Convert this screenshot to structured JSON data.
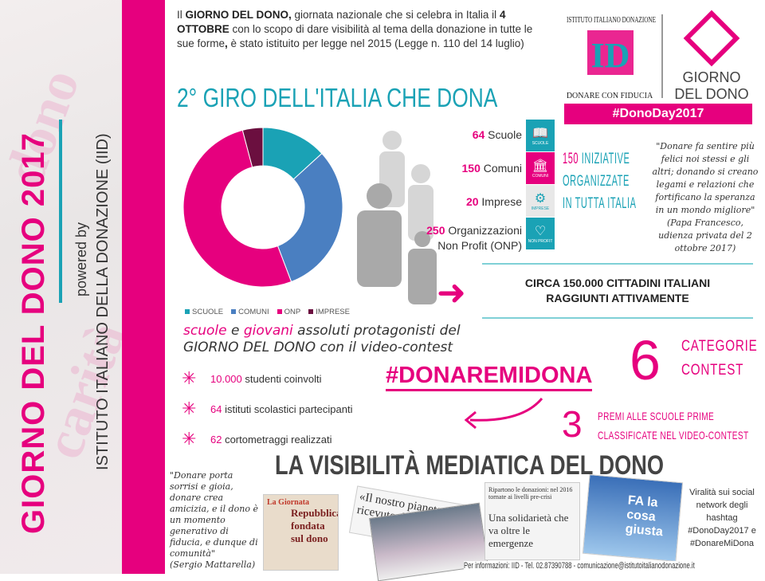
{
  "side": {
    "title": "GIORNO DEL DONO 2017",
    "powered": "powered by",
    "institute": "ISTITUTO ITALIANO DELLA DONAZIONE (IID)"
  },
  "intro": {
    "p1": "Il ",
    "b1": "GIORNO DEL DONO,",
    "p2": " giornata nazionale che si celebra in Italia il ",
    "b2": "4 OTTOBRE",
    "p3": " con lo scopo di dare visibilità al tema della donazione in tutte le sue forme",
    "b3": ",",
    "p4": " è stato istituito per legge nel 2015 (Legge n. 110 del 14 luglio)"
  },
  "heading": "2° GIRO DELL'ITALIA CHE DONA",
  "logo": {
    "arc": "ISTITUTO ITALIANO DONAZIONE",
    "mark": "ID",
    "motto": "DONARE CON FIDUCIA",
    "giorno1": "GIORNO",
    "giorno2": "DEL DONO",
    "hashtag": "#DonoDay2017"
  },
  "chart_data": {
    "type": "pie",
    "donut": true,
    "categories": [
      "SCUOLE",
      "COMUNI",
      "ONP",
      "IMPRESE"
    ],
    "values": [
      64,
      150,
      250,
      20
    ],
    "colors": [
      "#1aa2b5",
      "#4a7fc1",
      "#e6007e",
      "#6b0f3f"
    ],
    "legend": "bottom"
  },
  "stats": [
    {
      "num": "64",
      "label": " Scuole",
      "tile": "SCUOLE",
      "icon": "book-icon",
      "color": "#1aa2b5"
    },
    {
      "num": "150",
      "label": " Comuni",
      "tile": "COMUNI",
      "icon": "building-icon",
      "color": "#e6007e"
    },
    {
      "num": "20",
      "label": " Imprese",
      "tile": "IMPRESE",
      "icon": "gears-icon",
      "color": "#e8e8e8"
    },
    {
      "num": "250",
      "label": " Organizzazioni",
      "label2": "Non Profit (ONP)",
      "tile": "NON PROFIT",
      "icon": "heart-icon",
      "color": "#1aa2b5"
    }
  ],
  "tile_prefix": "DONODAY",
  "initiatives": {
    "num": "150",
    "l1": " INIZIATIVE",
    "l2": "ORGANIZZATE",
    "l3": "IN TUTTA ITALIA"
  },
  "papa_quote": "\"Donare fa sentire più felici noi stessi e gli altri; donando si creano legami e relazioni che fortificano la speranza in un mondo migliore\"",
  "papa_attr": "(Papa Francesco, udienza privata del 2 ottobre 2017)",
  "reach": {
    "l1": "CIRCA 150.000 CITTADINI ITALIANI",
    "l2": "RAGGIUNTI ATTIVAMENTE"
  },
  "youth": {
    "w1": "scuole",
    "t1": " e ",
    "w2": "giovani",
    "t2": " assoluti protagonisti del",
    "l2": "GIORNO DEL DONO con il video-contest"
  },
  "bullets": [
    {
      "num": "10.000",
      "text": " studenti coinvolti"
    },
    {
      "num": "64",
      "text": " istituti scolastici partecipanti"
    },
    {
      "num": "62",
      "text": " cortometraggi realizzati"
    }
  ],
  "hashtag": "#DONAREMIDONA",
  "contest": {
    "num": "6",
    "l1": "CATEGORIE",
    "l2": "CONTEST"
  },
  "prizes": {
    "num": "3",
    "l1": "PREMI ALLE SCUOLE PRIME",
    "l2": "CLASSIFICATE NEL VIDEO-CONTEST"
  },
  "media_title": "LA VISIBILITÀ MEDIATICA DEL DONO",
  "mattarella_quote": "\"Donare porta sorrisi e gioia, donare crea amicizia, e il dono è un momento generativo di fiducia, e dunque di comunità\"",
  "mattarella_attr": "(Sergio Mattarella)",
  "clips": {
    "c1_tag": "La Giornata",
    "c1_head": "Repubblica fondata sul dono",
    "c2": "«Il nostro pianeta dono ricevuto da co...",
    "c3_top": "Ripartono le donazioni: nel 2016 tornate ai livelli pre-crisi",
    "c3_head": "Una solidarietà che va oltre le emergenze",
    "c4": "FA la cosa giusta"
  },
  "viral": "Viralità sui social network degli hashtag #DonoDay2017 e #DonareMiDona",
  "footer": "Per informazioni: IID - Tel. 02.87390788 - comunicazione@istitutoitalianodonazione.it"
}
